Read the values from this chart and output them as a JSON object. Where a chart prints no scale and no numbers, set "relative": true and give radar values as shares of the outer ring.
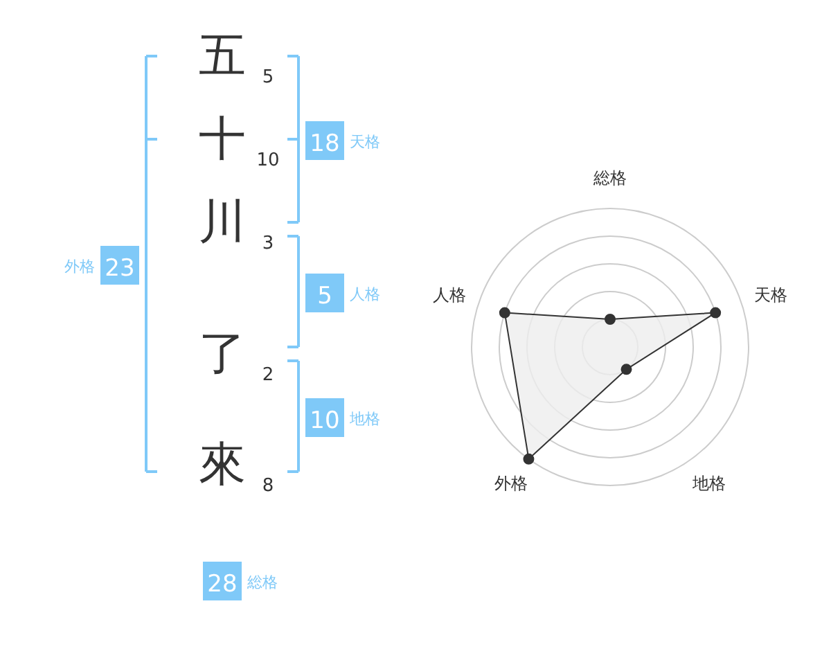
{
  "chart_data": [
    {
      "type": "other",
      "categories": [
        "五",
        "十",
        "川",
        "了",
        "來"
      ],
      "color": "#7fc9f8",
      "annotations": [
        "5",
        "10",
        "3",
        "2",
        "8",
        "18",
        "天格",
        "5",
        "人格",
        "10",
        "地格",
        "23",
        "外格",
        "28",
        "総格"
      ]
    },
    {
      "type": "radar",
      "relative": true,
      "categories": [
        "総格",
        "天格",
        "地格",
        "外格",
        "人格"
      ],
      "marker": "circle",
      "series": [
        {
          "color": "#333333",
          "values": [
            0.2,
            0.8,
            0.2,
            1.0,
            0.8
          ]
        }
      ]
    }
  ]
}
